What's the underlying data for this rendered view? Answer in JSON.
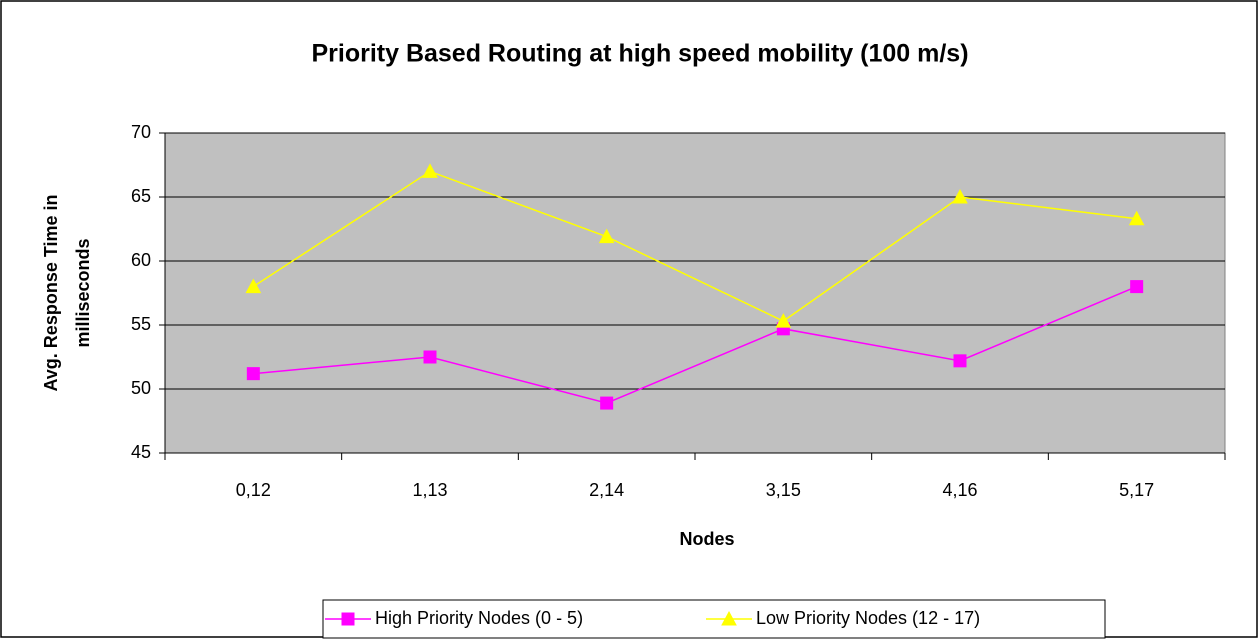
{
  "chart_data": {
    "type": "line",
    "title": "Priority Based Routing at high speed mobility (100 m/s)",
    "xlabel": "Nodes",
    "ylabel": [
      "Avg. Response Time in",
      "milliseconds"
    ],
    "categories": [
      "0,12",
      "1,13",
      "2,14",
      "3,15",
      "4,16",
      "5,17"
    ],
    "series": [
      {
        "name": "High Priority Nodes (0 - 5)",
        "color": "#ff00ff",
        "marker": "square",
        "values": [
          51.2,
          52.5,
          48.9,
          54.7,
          52.2,
          58.0
        ]
      },
      {
        "name": "Low Priority Nodes (12 - 17)",
        "color": "#ffff00",
        "marker": "triangle",
        "values": [
          58.0,
          67.0,
          61.9,
          55.3,
          65.0,
          63.3
        ]
      }
    ],
    "ylim": [
      45,
      70
    ],
    "yticks": [
      45,
      50,
      55,
      60,
      65,
      70
    ],
    "grid": true,
    "plot_background": "#c0c0c0",
    "legend": "bottom"
  }
}
